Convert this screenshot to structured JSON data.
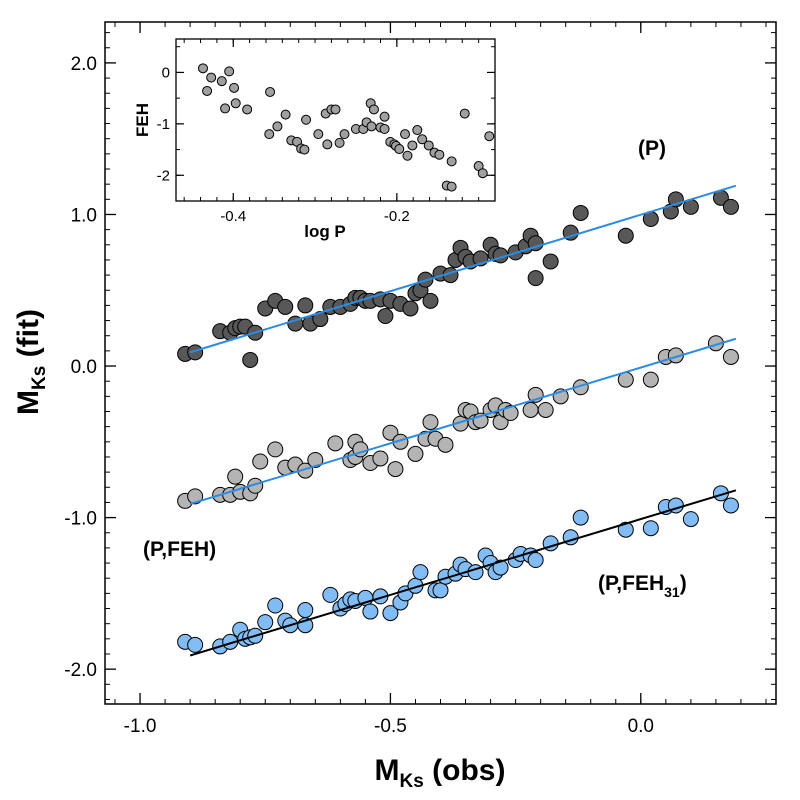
{
  "chart_data": {
    "type": "scatter",
    "main": {
      "xlabel": {
        "base": "M",
        "sub": "Ks",
        "suffix": " (obs)"
      },
      "ylabel": {
        "base": "M",
        "sub": "Ks",
        "suffix": " (fit)"
      },
      "xlim": [
        -1.07,
        0.27
      ],
      "ylim": [
        -2.23,
        2.27
      ],
      "x_ticks": [
        -1.0,
        -0.5,
        0.0
      ],
      "x_tick_labels": [
        "-1.0",
        "-0.5",
        "0.0"
      ],
      "y_ticks": [
        -2.0,
        -1.0,
        0.0,
        1.0,
        2.0
      ],
      "y_tick_labels": [
        "-2.0",
        "-1.0",
        "0.0",
        "1.0",
        "2.0"
      ],
      "series": [
        {
          "name": "(P)",
          "label_base": "(P)",
          "label_sub": "",
          "label_suffix": "",
          "color": "#585858",
          "fit_color": "#2a8ce6",
          "fit": [
            [
              -0.9,
              0.09
            ],
            [
              0.19,
              1.19
            ]
          ],
          "points": [
            [
              -0.91,
              0.08
            ],
            [
              -0.89,
              0.09
            ],
            [
              -0.84,
              0.23
            ],
            [
              -0.82,
              0.22
            ],
            [
              -0.81,
              0.25
            ],
            [
              -0.8,
              0.26
            ],
            [
              -0.79,
              0.26
            ],
            [
              -0.78,
              0.04
            ],
            [
              -0.77,
              0.22
            ],
            [
              -0.75,
              0.38
            ],
            [
              -0.73,
              0.43
            ],
            [
              -0.71,
              0.39
            ],
            [
              -0.69,
              0.28
            ],
            [
              -0.67,
              0.4
            ],
            [
              -0.66,
              0.28
            ],
            [
              -0.64,
              0.31
            ],
            [
              -0.62,
              0.39
            ],
            [
              -0.6,
              0.39
            ],
            [
              -0.58,
              0.41
            ],
            [
              -0.57,
              0.45
            ],
            [
              -0.56,
              0.45
            ],
            [
              -0.55,
              0.43
            ],
            [
              -0.54,
              0.43
            ],
            [
              -0.52,
              0.44
            ],
            [
              -0.51,
              0.33
            ],
            [
              -0.5,
              0.43
            ],
            [
              -0.48,
              0.41
            ],
            [
              -0.46,
              0.38
            ],
            [
              -0.45,
              0.48
            ],
            [
              -0.44,
              0.5
            ],
            [
              -0.43,
              0.57
            ],
            [
              -0.42,
              0.43
            ],
            [
              -0.4,
              0.61
            ],
            [
              -0.38,
              0.6
            ],
            [
              -0.37,
              0.7
            ],
            [
              -0.36,
              0.78
            ],
            [
              -0.35,
              0.72
            ],
            [
              -0.34,
              0.69
            ],
            [
              -0.32,
              0.71
            ],
            [
              -0.3,
              0.8
            ],
            [
              -0.29,
              0.74
            ],
            [
              -0.28,
              0.73
            ],
            [
              -0.25,
              0.75
            ],
            [
              -0.23,
              0.79
            ],
            [
              -0.22,
              0.86
            ],
            [
              -0.21,
              0.81
            ],
            [
              -0.21,
              0.58
            ],
            [
              -0.18,
              0.69
            ],
            [
              -0.14,
              0.88
            ],
            [
              -0.12,
              1.01
            ],
            [
              -0.03,
              0.86
            ],
            [
              0.02,
              0.97
            ],
            [
              0.06,
              1.02
            ],
            [
              0.07,
              1.1
            ],
            [
              0.1,
              1.05
            ],
            [
              0.16,
              1.11
            ],
            [
              0.18,
              1.05
            ]
          ]
        },
        {
          "name": "(P,FEH)",
          "label_base": "(P,FEH)",
          "label_sub": "",
          "label_suffix": "",
          "color": "#b4b4b4",
          "fit_color": "#2a8ce6",
          "fit": [
            [
              -0.9,
              -0.91
            ],
            [
              0.19,
              0.18
            ]
          ],
          "points": [
            [
              -0.91,
              -0.89
            ],
            [
              -0.89,
              -0.86
            ],
            [
              -0.84,
              -0.85
            ],
            [
              -0.82,
              -0.85
            ],
            [
              -0.81,
              -0.73
            ],
            [
              -0.8,
              -0.83
            ],
            [
              -0.78,
              -0.84
            ],
            [
              -0.77,
              -0.79
            ],
            [
              -0.76,
              -0.63
            ],
            [
              -0.73,
              -0.55
            ],
            [
              -0.71,
              -0.67
            ],
            [
              -0.69,
              -0.65
            ],
            [
              -0.67,
              -0.69
            ],
            [
              -0.65,
              -0.62
            ],
            [
              -0.61,
              -0.51
            ],
            [
              -0.58,
              -0.62
            ],
            [
              -0.57,
              -0.6
            ],
            [
              -0.57,
              -0.5
            ],
            [
              -0.56,
              -0.55
            ],
            [
              -0.54,
              -0.64
            ],
            [
              -0.52,
              -0.61
            ],
            [
              -0.5,
              -0.44
            ],
            [
              -0.49,
              -0.68
            ],
            [
              -0.48,
              -0.5
            ],
            [
              -0.45,
              -0.58
            ],
            [
              -0.43,
              -0.48
            ],
            [
              -0.42,
              -0.37
            ],
            [
              -0.41,
              -0.48
            ],
            [
              -0.39,
              -0.52
            ],
            [
              -0.36,
              -0.38
            ],
            [
              -0.35,
              -0.29
            ],
            [
              -0.34,
              -0.3
            ],
            [
              -0.33,
              -0.37
            ],
            [
              -0.32,
              -0.36
            ],
            [
              -0.3,
              -0.29
            ],
            [
              -0.29,
              -0.26
            ],
            [
              -0.28,
              -0.37
            ],
            [
              -0.27,
              -0.29
            ],
            [
              -0.26,
              -0.31
            ],
            [
              -0.22,
              -0.29
            ],
            [
              -0.21,
              -0.19
            ],
            [
              -0.19,
              -0.29
            ],
            [
              -0.16,
              -0.2
            ],
            [
              -0.12,
              -0.14
            ],
            [
              -0.03,
              -0.09
            ],
            [
              0.02,
              -0.09
            ],
            [
              0.05,
              0.06
            ],
            [
              0.07,
              0.07
            ],
            [
              0.15,
              0.15
            ],
            [
              0.18,
              0.06
            ]
          ]
        },
        {
          "name": "(P,FEH31)",
          "label_base": "(P,FEH",
          "label_sub": "31",
          "label_suffix": ")",
          "color": "#82bcf5",
          "fit_color": "#000000",
          "fit": [
            [
              -0.9,
              -1.91
            ],
            [
              0.19,
              -0.82
            ]
          ],
          "points": [
            [
              -0.91,
              -1.82
            ],
            [
              -0.89,
              -1.84
            ],
            [
              -0.84,
              -1.85
            ],
            [
              -0.82,
              -1.82
            ],
            [
              -0.8,
              -1.74
            ],
            [
              -0.79,
              -1.8
            ],
            [
              -0.78,
              -1.79
            ],
            [
              -0.77,
              -1.78
            ],
            [
              -0.75,
              -1.69
            ],
            [
              -0.73,
              -1.58
            ],
            [
              -0.71,
              -1.68
            ],
            [
              -0.7,
              -1.71
            ],
            [
              -0.67,
              -1.61
            ],
            [
              -0.67,
              -1.71
            ],
            [
              -0.62,
              -1.51
            ],
            [
              -0.6,
              -1.6
            ],
            [
              -0.59,
              -1.57
            ],
            [
              -0.58,
              -1.54
            ],
            [
              -0.57,
              -1.55
            ],
            [
              -0.55,
              -1.53
            ],
            [
              -0.54,
              -1.62
            ],
            [
              -0.52,
              -1.52
            ],
            [
              -0.5,
              -1.63
            ],
            [
              -0.48,
              -1.56
            ],
            [
              -0.47,
              -1.5
            ],
            [
              -0.45,
              -1.45
            ],
            [
              -0.44,
              -1.36
            ],
            [
              -0.41,
              -1.48
            ],
            [
              -0.4,
              -1.48
            ],
            [
              -0.39,
              -1.39
            ],
            [
              -0.37,
              -1.37
            ],
            [
              -0.36,
              -1.31
            ],
            [
              -0.35,
              -1.34
            ],
            [
              -0.33,
              -1.36
            ],
            [
              -0.31,
              -1.25
            ],
            [
              -0.3,
              -1.3
            ],
            [
              -0.29,
              -1.36
            ],
            [
              -0.28,
              -1.33
            ],
            [
              -0.25,
              -1.28
            ],
            [
              -0.24,
              -1.24
            ],
            [
              -0.22,
              -1.25
            ],
            [
              -0.21,
              -1.28
            ],
            [
              -0.18,
              -1.17
            ],
            [
              -0.14,
              -1.13
            ],
            [
              -0.12,
              -1.0
            ],
            [
              -0.03,
              -1.08
            ],
            [
              0.02,
              -1.07
            ],
            [
              0.05,
              -0.93
            ],
            [
              0.07,
              -0.92
            ],
            [
              0.1,
              -1.01
            ],
            [
              0.16,
              -0.84
            ],
            [
              0.18,
              -0.92
            ]
          ]
        }
      ]
    },
    "inset": {
      "type": "scatter",
      "xlabel": "log P",
      "ylabel": "FEH",
      "xlim": [
        -0.47,
        -0.08
      ],
      "ylim": [
        -2.5,
        0.65
      ],
      "x_ticks": [
        -0.4,
        -0.2
      ],
      "x_tick_labels": [
        "-0.4",
        "-0.2"
      ],
      "y_ticks": [
        0,
        -1,
        -2
      ],
      "y_tick_labels": [
        "0",
        "-1",
        "-2"
      ],
      "color": "#a0a0a0",
      "points": [
        [
          -0.437,
          0.08
        ],
        [
          -0.427,
          -0.1
        ],
        [
          -0.432,
          -0.36
        ],
        [
          -0.414,
          -0.17
        ],
        [
          -0.405,
          0.02
        ],
        [
          -0.41,
          -0.7
        ],
        [
          -0.399,
          -0.3
        ],
        [
          -0.397,
          -0.6
        ],
        [
          -0.383,
          -0.72
        ],
        [
          -0.356,
          -1.2
        ],
        [
          -0.346,
          -1.05
        ],
        [
          -0.355,
          -0.38
        ],
        [
          -0.336,
          -0.82
        ],
        [
          -0.329,
          -1.32
        ],
        [
          -0.322,
          -1.35
        ],
        [
          -0.317,
          -1.48
        ],
        [
          -0.313,
          -1.5
        ],
        [
          -0.311,
          -0.92
        ],
        [
          -0.296,
          -1.2
        ],
        [
          -0.287,
          -0.8
        ],
        [
          -0.28,
          -0.72
        ],
        [
          -0.285,
          -1.4
        ],
        [
          -0.275,
          -0.72
        ],
        [
          -0.27,
          -1.37
        ],
        [
          -0.264,
          -1.2
        ],
        [
          -0.25,
          -1.1
        ],
        [
          -0.241,
          -1.1
        ],
        [
          -0.237,
          -0.97
        ],
        [
          -0.231,
          -1.05
        ],
        [
          -0.22,
          -1.07
        ],
        [
          -0.215,
          -1.1
        ],
        [
          -0.208,
          -1.35
        ],
        [
          -0.203,
          -1.4
        ],
        [
          -0.201,
          -1.43
        ],
        [
          -0.197,
          -1.49
        ],
        [
          -0.19,
          -1.2
        ],
        [
          -0.187,
          -1.62
        ],
        [
          -0.181,
          -1.42
        ],
        [
          -0.175,
          -1.12
        ],
        [
          -0.169,
          -1.3
        ],
        [
          -0.161,
          -1.42
        ],
        [
          -0.154,
          -1.56
        ],
        [
          -0.148,
          -1.6
        ],
        [
          -0.139,
          -2.2
        ],
        [
          -0.133,
          -2.22
        ],
        [
          -0.133,
          -1.73
        ],
        [
          -0.117,
          -0.8
        ],
        [
          -0.1,
          -1.82
        ],
        [
          -0.095,
          -1.96
        ],
        [
          -0.087,
          -1.24
        ],
        [
          -0.232,
          -0.6
        ],
        [
          -0.228,
          -0.72
        ],
        [
          -0.215,
          -0.86
        ]
      ]
    }
  }
}
